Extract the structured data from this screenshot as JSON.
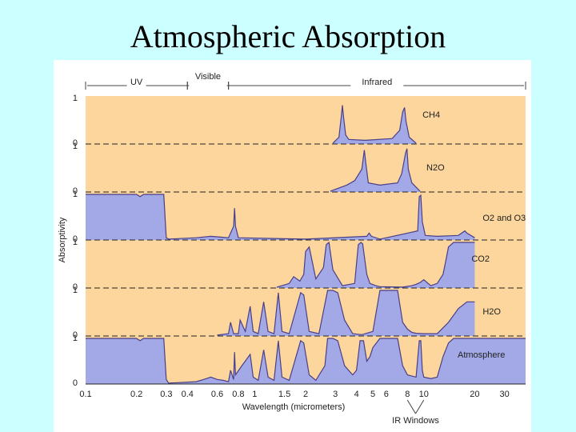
{
  "slide": {
    "title": "Atmospheric Absorption"
  },
  "chart_data": {
    "type": "area",
    "title": "",
    "xlabel": "Wavelength (micrometers)",
    "ylabel": "Absorptivity",
    "x_scale": "log",
    "xlim": [
      0.1,
      40
    ],
    "ylim": [
      0,
      1
    ],
    "x_ticks": [
      "0.1",
      "0.2",
      "0.3",
      "0.4",
      "0.6",
      "0.8",
      "1",
      "1.5",
      "2",
      "3",
      "4",
      "5",
      "6",
      "8",
      "10",
      "20",
      "30"
    ],
    "x_tick_values": [
      0.1,
      0.2,
      0.3,
      0.4,
      0.6,
      0.8,
      1,
      1.5,
      2,
      3,
      4,
      5,
      6,
      8,
      10,
      20,
      30
    ],
    "y_ticks": [
      "0",
      "1"
    ],
    "regions": [
      {
        "label": "UV",
        "from": 0.1,
        "to": 0.4
      },
      {
        "label": "Visible",
        "from": 0.4,
        "to": 0.7
      },
      {
        "label": "Infrared",
        "from": 0.7,
        "to": 40
      }
    ],
    "annotation": "IR Windows",
    "annotation_x": [
      8,
      10
    ],
    "colors": {
      "background": "#fcd69c",
      "fill": "#a3a9e6",
      "line": "#4a3f88",
      "dash": "#222222"
    },
    "series": [
      {
        "name": "CH4",
        "x": [
          2.9,
          3.15,
          3.25,
          3.3,
          3.35,
          3.45,
          3.6,
          4.5,
          6.5,
          7.2,
          7.5,
          7.7,
          7.85,
          8.2,
          9.0
        ],
        "y": [
          0.02,
          0.15,
          0.6,
          0.85,
          0.6,
          0.2,
          0.1,
          0.08,
          0.12,
          0.3,
          0.7,
          0.8,
          0.5,
          0.15,
          0.02
        ]
      },
      {
        "name": "N2O",
        "x": [
          2.8,
          3.5,
          3.9,
          4.3,
          4.45,
          4.55,
          4.7,
          5.5,
          7.0,
          7.4,
          7.8,
          7.95,
          8.1,
          8.5,
          9.5
        ],
        "y": [
          0.02,
          0.15,
          0.25,
          0.5,
          0.92,
          0.6,
          0.2,
          0.15,
          0.2,
          0.4,
          0.85,
          0.95,
          0.5,
          0.2,
          0.02
        ]
      },
      {
        "name": "O2 and O3",
        "x": [
          0.1,
          0.2,
          0.21,
          0.22,
          0.24,
          0.29,
          0.3,
          0.31,
          0.35,
          0.45,
          0.55,
          0.6,
          0.7,
          0.75,
          0.76,
          0.77,
          0.8,
          2.0,
          4.6,
          4.75,
          4.9,
          5.5,
          9.2,
          9.4,
          9.6,
          9.8,
          10.2,
          12,
          16,
          17.5,
          18,
          20
        ],
        "y": [
          1,
          1,
          0.95,
          1,
          1,
          1,
          0.05,
          0.02,
          0.03,
          0.05,
          0.08,
          0.07,
          0.05,
          0.3,
          0.7,
          0.3,
          0.05,
          0.02,
          0.08,
          0.15,
          0.08,
          0.02,
          0.2,
          0.95,
          0.98,
          0.4,
          0.1,
          0.08,
          0.1,
          0.2,
          0.15,
          0.05
        ]
      },
      {
        "name": "CO2",
        "x": [
          1.35,
          1.45,
          1.6,
          1.7,
          1.85,
          1.95,
          2.0,
          2.1,
          2.3,
          2.55,
          2.65,
          2.75,
          2.9,
          3.3,
          3.9,
          4.1,
          4.25,
          4.35,
          4.6,
          4.8,
          5.2,
          5.5,
          7.5,
          8.5,
          9.0,
          9.5,
          10.0,
          11.0,
          12.0,
          13.0,
          13.5,
          14.0,
          15.0,
          17.5,
          20.0
        ],
        "y": [
          0.02,
          0.05,
          0.1,
          0.25,
          0.15,
          0.3,
          0.8,
          0.9,
          0.2,
          0.45,
          0.95,
          1.0,
          0.4,
          0.05,
          0.1,
          0.95,
          1.0,
          0.97,
          0.3,
          0.1,
          0.05,
          0.03,
          0.02,
          0.05,
          0.08,
          0.12,
          0.18,
          0.05,
          0.1,
          0.3,
          0.6,
          0.9,
          1.0,
          1.0,
          1.0
        ]
      },
      {
        "name": "H2O",
        "x": [
          0.6,
          0.7,
          0.72,
          0.75,
          0.8,
          0.82,
          0.88,
          0.94,
          0.98,
          1.05,
          1.13,
          1.2,
          1.3,
          1.38,
          1.45,
          1.6,
          1.87,
          1.95,
          2.1,
          2.4,
          2.7,
          2.9,
          3.1,
          3.4,
          3.8,
          4.3,
          5.0,
          5.5,
          6.3,
          7.0,
          7.5,
          8.0,
          8.5,
          9.0,
          10.0,
          11.0,
          12.0,
          14.0,
          16.0,
          18.0,
          20.0
        ],
        "y": [
          0.02,
          0.05,
          0.3,
          0.05,
          0.05,
          0.35,
          0.1,
          0.65,
          0.1,
          0.05,
          0.75,
          0.1,
          0.05,
          0.95,
          0.1,
          0.05,
          0.95,
          0.9,
          0.1,
          0.05,
          1.0,
          1.0,
          0.95,
          0.35,
          0.05,
          0.03,
          0.1,
          1.0,
          1.0,
          1.0,
          0.3,
          0.15,
          0.08,
          0.06,
          0.05,
          0.05,
          0.05,
          0.3,
          0.6,
          0.75,
          0.75
        ]
      },
      {
        "name": "Atmosphere",
        "x": [
          0.1,
          0.2,
          0.21,
          0.22,
          0.29,
          0.3,
          0.31,
          0.35,
          0.45,
          0.5,
          0.55,
          0.6,
          0.65,
          0.7,
          0.72,
          0.75,
          0.76,
          0.77,
          0.82,
          0.94,
          0.98,
          1.05,
          1.13,
          1.2,
          1.3,
          1.38,
          1.45,
          1.6,
          1.87,
          1.95,
          2.1,
          2.3,
          2.6,
          2.7,
          2.9,
          3.1,
          3.4,
          3.8,
          4.0,
          4.2,
          4.4,
          4.6,
          4.8,
          5.0,
          5.5,
          6.3,
          7.0,
          7.5,
          8.0,
          9.0,
          9.4,
          9.6,
          9.8,
          10.0,
          11.0,
          12.0,
          13.0,
          14.0,
          15.0,
          20.0,
          30.0,
          40.0
        ],
        "y": [
          1,
          1,
          0.95,
          1,
          1,
          0.1,
          0.02,
          0.03,
          0.05,
          0.1,
          0.15,
          0.1,
          0.08,
          0.05,
          0.3,
          0.1,
          0.7,
          0.2,
          0.35,
          0.65,
          0.15,
          0.08,
          0.75,
          0.15,
          0.08,
          0.95,
          0.15,
          0.08,
          0.95,
          0.9,
          0.2,
          0.08,
          0.4,
          1.0,
          1.0,
          0.95,
          0.4,
          0.2,
          0.3,
          0.95,
          0.95,
          0.5,
          0.6,
          0.8,
          1.0,
          1.0,
          1.0,
          0.4,
          0.2,
          0.15,
          0.95,
          0.95,
          0.3,
          0.15,
          0.12,
          0.15,
          0.6,
          0.9,
          1.0,
          1.0,
          1.0,
          1.0
        ]
      }
    ]
  }
}
